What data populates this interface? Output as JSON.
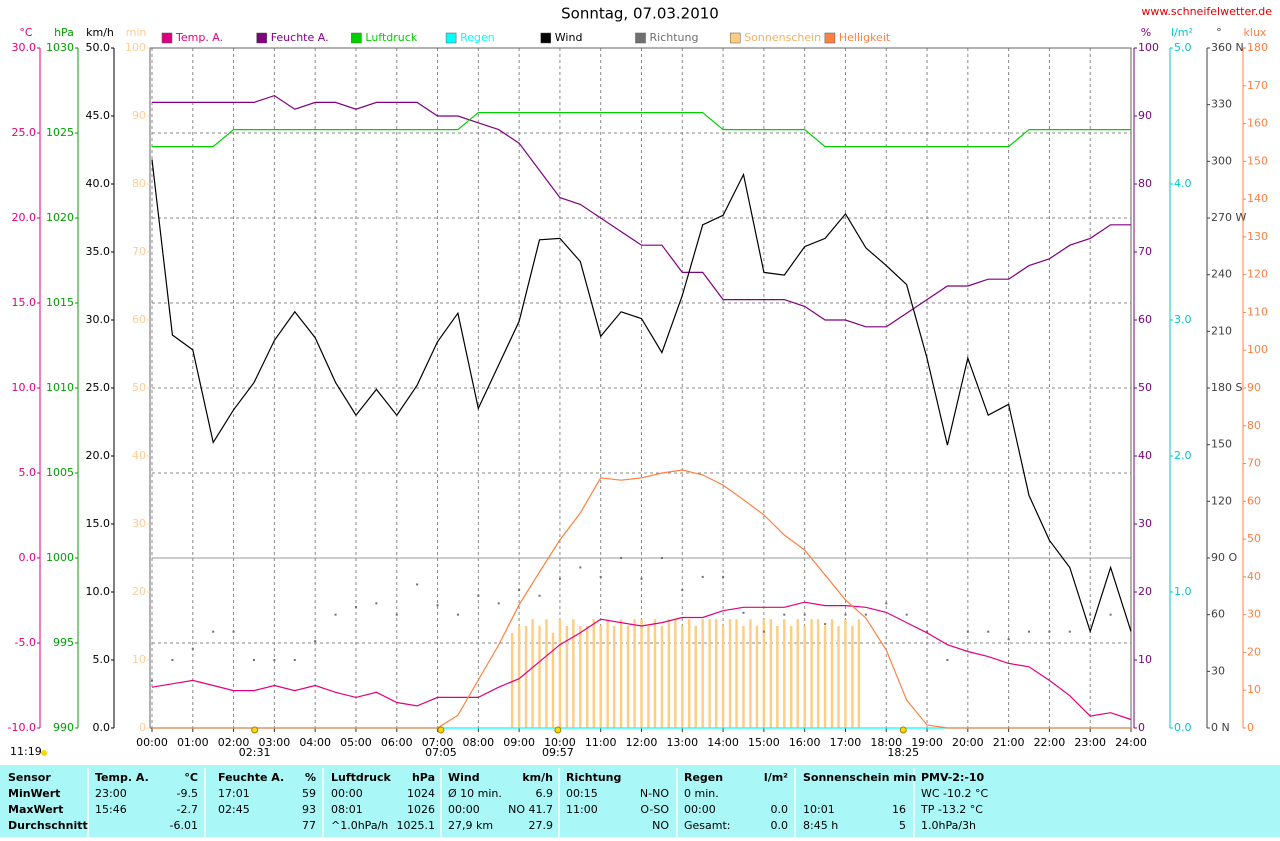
{
  "header": {
    "site": "www.schneifelwetter.de"
  },
  "chart_data": {
    "type": "line",
    "title": "Sonntag, 07.03.2010",
    "x": [
      0,
      0.5,
      1,
      1.5,
      2,
      2.5,
      3,
      3.5,
      4,
      4.5,
      5,
      5.5,
      6,
      6.5,
      7,
      7.5,
      8,
      8.5,
      9,
      9.5,
      10,
      10.5,
      11,
      11.5,
      12,
      12.5,
      13,
      13.5,
      14,
      14.5,
      15,
      15.5,
      16,
      16.5,
      17,
      17.5,
      18,
      18.5,
      19,
      19.5,
      20,
      20.5,
      21,
      21.5,
      22,
      22.5,
      23,
      23.5,
      24
    ],
    "xlim": [
      0,
      24
    ],
    "xticks": [
      {
        "value": 0,
        "label": "00:00"
      },
      {
        "value": 1,
        "label": "01:00"
      },
      {
        "value": 2,
        "label": "02:00"
      },
      {
        "value": 3,
        "label": "03:00"
      },
      {
        "value": 4,
        "label": "04:00"
      },
      {
        "value": 5,
        "label": "05:00"
      },
      {
        "value": 6,
        "label": "06:00"
      },
      {
        "value": 7,
        "label": "07:00"
      },
      {
        "value": 8,
        "label": "08:00"
      },
      {
        "value": 9,
        "label": "09:00"
      },
      {
        "value": 10,
        "label": "10:00"
      },
      {
        "value": 11,
        "label": "11:00"
      },
      {
        "value": 12,
        "label": "12:00"
      },
      {
        "value": 13,
        "label": "13:00"
      },
      {
        "value": 14,
        "label": "14:00"
      },
      {
        "value": 15,
        "label": "15:00"
      },
      {
        "value": 16,
        "label": "16:00"
      },
      {
        "value": 17,
        "label": "17:00"
      },
      {
        "value": 18,
        "label": "18:00"
      },
      {
        "value": 19,
        "label": "19:00"
      },
      {
        "value": 20,
        "label": "20:00"
      },
      {
        "value": 21,
        "label": "21:00"
      },
      {
        "value": 22,
        "label": "22:00"
      },
      {
        "value": 23,
        "label": "23:00"
      },
      {
        "value": 24,
        "label": "24:00"
      }
    ],
    "grid": true,
    "axes": [
      {
        "id": "temp",
        "unit": "°C",
        "side": "left",
        "color": "#e0007f",
        "lim": [
          -10,
          30
        ],
        "ticks": [
          {
            "value": -10,
            "label": "-10.0"
          },
          {
            "value": -5,
            "label": "-5.0"
          },
          {
            "value": 0,
            "label": "0.0"
          },
          {
            "value": 5,
            "label": "5.0"
          },
          {
            "value": 10,
            "label": "10.0"
          },
          {
            "value": 15,
            "label": "15.0"
          },
          {
            "value": 20,
            "label": "20.0"
          },
          {
            "value": 25,
            "label": "25.0"
          },
          {
            "value": 30,
            "label": "30.0"
          }
        ]
      },
      {
        "id": "press",
        "unit": "hPa",
        "side": "left",
        "color": "#00a000",
        "lim": [
          990,
          1030
        ],
        "ticks": [
          990,
          995,
          1000,
          1005,
          1010,
          1015,
          1020,
          1025,
          1030
        ]
      },
      {
        "id": "wind",
        "unit": "km/h",
        "side": "left",
        "color": "#000000",
        "lim": [
          0,
          50
        ],
        "ticks": [
          {
            "value": 0,
            "label": "0.0"
          },
          {
            "value": 5,
            "label": "5.0"
          },
          {
            "value": 10,
            "label": "10.0"
          },
          {
            "value": 15,
            "label": "15.0"
          },
          {
            "value": 20,
            "label": "20.0"
          },
          {
            "value": 25,
            "label": "25.0"
          },
          {
            "value": 30,
            "label": "30.0"
          },
          {
            "value": 35,
            "label": "35.0"
          },
          {
            "value": 40,
            "label": "40.0"
          },
          {
            "value": 45,
            "label": "45.0"
          },
          {
            "value": 50,
            "label": "50.0"
          }
        ]
      },
      {
        "id": "min",
        "unit": "min",
        "side": "left",
        "color": "#ffcc99",
        "lim": [
          0,
          100
        ],
        "ticks": [
          0,
          10,
          20,
          30,
          40,
          50,
          60,
          70,
          80,
          90,
          100
        ]
      },
      {
        "id": "hum",
        "unit": "%",
        "side": "right",
        "color": "#800080",
        "lim": [
          0,
          100
        ],
        "ticks": [
          0,
          10,
          20,
          30,
          40,
          50,
          60,
          70,
          80,
          90,
          100
        ]
      },
      {
        "id": "rain",
        "unit": "l/m²",
        "side": "right",
        "color": "#00c8c8",
        "lim": [
          0,
          5
        ],
        "ticks": [
          {
            "value": 0,
            "label": "0.0"
          },
          {
            "value": 1,
            "label": "1.0"
          },
          {
            "value": 2,
            "label": "2.0"
          },
          {
            "value": 3,
            "label": "3.0"
          },
          {
            "value": 4,
            "label": "4.0"
          },
          {
            "value": 5,
            "label": "5.0"
          }
        ]
      },
      {
        "id": "dir",
        "unit": "°",
        "side": "right",
        "color": "#404040",
        "lim": [
          0,
          360
        ],
        "ticks": [
          {
            "value": 0,
            "label": "0 N"
          },
          30,
          60,
          {
            "value": 90,
            "label": "90 O"
          },
          120,
          150,
          {
            "value": 180,
            "label": "180 S"
          },
          210,
          240,
          {
            "value": 270,
            "label": "270 W"
          },
          300,
          330,
          {
            "value": 360,
            "label": "360 N"
          }
        ]
      },
      {
        "id": "lux",
        "unit": "klux",
        "side": "right",
        "color": "#ff8040",
        "lim": [
          0,
          180
        ],
        "ticks": [
          0,
          10,
          20,
          30,
          40,
          50,
          60,
          70,
          80,
          90,
          100,
          110,
          120,
          130,
          140,
          150,
          160,
          170,
          180
        ]
      }
    ],
    "series": [
      {
        "name": "Temp. A.",
        "type": "line",
        "color": "#e0007f",
        "axis": "temp",
        "values": [
          -7.6,
          -7.4,
          -7.2,
          -7.5,
          -7.8,
          -7.8,
          -7.5,
          -7.8,
          -7.5,
          -7.9,
          -8.2,
          -7.9,
          -8.5,
          -8.7,
          -8.2,
          -8.2,
          -8.2,
          -7.6,
          -7.1,
          -6.1,
          -5.1,
          -4.4,
          -3.6,
          -3.8,
          -4.0,
          -3.8,
          -3.5,
          -3.5,
          -3.1,
          -2.9,
          -2.9,
          -2.9,
          -2.6,
          -2.8,
          -2.8,
          -2.9,
          -3.2,
          -3.8,
          -4.4,
          -5.1,
          -5.5,
          -5.8,
          -6.2,
          -6.4,
          -7.2,
          -8.1,
          -9.3,
          -9.1,
          -9.5
        ]
      },
      {
        "name": "Feuchte A.",
        "type": "line",
        "color": "#800080",
        "axis": "hum",
        "values": [
          92,
          92,
          92,
          92,
          92,
          92,
          93,
          91,
          92,
          92,
          91,
          92,
          92,
          92,
          90,
          90,
          89,
          88,
          86,
          82,
          78,
          77,
          75,
          73,
          71,
          71,
          67,
          67,
          63,
          63,
          63,
          63,
          62,
          60,
          60,
          59,
          59,
          61,
          63,
          65,
          65,
          66,
          66,
          68,
          69,
          71,
          72,
          74,
          74
        ]
      },
      {
        "name": "Luftdruck",
        "type": "line",
        "color": "#00d000",
        "axis": "press",
        "values": [
          1024.2,
          1024.2,
          1024.2,
          1024.2,
          1025.2,
          1025.2,
          1025.2,
          1025.2,
          1025.2,
          1025.2,
          1025.2,
          1025.2,
          1025.2,
          1025.2,
          1025.2,
          1025.2,
          1026.2,
          1026.2,
          1026.2,
          1026.2,
          1026.2,
          1026.2,
          1026.2,
          1026.2,
          1026.2,
          1026.2,
          1026.2,
          1026.2,
          1025.2,
          1025.2,
          1025.2,
          1025.2,
          1025.2,
          1024.2,
          1024.2,
          1024.2,
          1024.2,
          1024.2,
          1024.2,
          1024.2,
          1024.2,
          1024.2,
          1024.2,
          1025.2,
          1025.2,
          1025.2,
          1025.2,
          1025.2,
          1025.2
        ]
      },
      {
        "name": "Regen",
        "type": "line",
        "color": "#00ffff",
        "axis": "rain",
        "x": [
          0,
          24
        ],
        "values": [
          0,
          0
        ]
      },
      {
        "name": "Wind",
        "type": "line",
        "color": "#000000",
        "axis": "wind",
        "values": [
          41.8,
          28.9,
          27.8,
          21.0,
          23.4,
          25.4,
          28.5,
          30.6,
          28.7,
          25.4,
          23.0,
          24.9,
          23.0,
          25.2,
          28.4,
          30.5,
          23.5,
          26.7,
          29.9,
          35.9,
          36.0,
          34.3,
          28.8,
          30.6,
          30.1,
          27.6,
          31.8,
          37.0,
          37.7,
          40.7,
          33.5,
          33.3,
          35.4,
          36.0,
          37.8,
          35.3,
          34.0,
          32.6,
          27.2,
          20.8,
          27.2,
          23.0,
          23.8,
          17.1,
          13.8,
          11.8,
          7.1,
          11.8,
          7.1
        ]
      },
      {
        "name": "Richtung",
        "type": "scatter",
        "color": "#707070",
        "axis": "dir",
        "x": [
          0,
          0.5,
          1,
          1.5,
          2,
          2.5,
          3,
          3.5,
          4,
          4.5,
          5,
          5.5,
          6,
          6.5,
          7,
          7.5,
          8,
          8.5,
          9,
          9.5,
          10,
          10.5,
          11,
          11.5,
          12,
          12.5,
          13,
          13.5,
          14,
          14.5,
          15,
          15.5,
          16,
          16.5,
          17,
          17.5,
          18,
          18.5,
          19,
          19.5,
          20,
          20.5,
          21,
          21.5,
          22,
          22.5,
          23,
          23.5
        ],
        "values": [
          25,
          36,
          42,
          51,
          51,
          36,
          36,
          36,
          46,
          60,
          64,
          66,
          60,
          76,
          65,
          60,
          70,
          66,
          73,
          70,
          79,
          85,
          80,
          90,
          79,
          90,
          73,
          80,
          80,
          61,
          51,
          60,
          60,
          55,
          60,
          60,
          66,
          60,
          51,
          36,
          51,
          51,
          47,
          51,
          51,
          51,
          60,
          60
        ]
      },
      {
        "name": "Sonnenschein",
        "type": "bar",
        "color": "#ffcc80",
        "axis": "min",
        "x": [
          8.83,
          9,
          9.17,
          9.33,
          9.5,
          9.67,
          9.83,
          10,
          10.17,
          10.33,
          10.5,
          10.67,
          10.83,
          11,
          11.17,
          11.33,
          11.5,
          11.67,
          11.83,
          12,
          12.17,
          12.33,
          12.5,
          12.67,
          12.83,
          13,
          13.17,
          13.33,
          13.5,
          13.67,
          13.83,
          14,
          14.17,
          14.33,
          14.5,
          14.67,
          14.83,
          15,
          15.17,
          15.33,
          15.5,
          15.67,
          15.83,
          16,
          16.17,
          16.33,
          16.5,
          16.67,
          16.83,
          17,
          17.17,
          17.33
        ],
        "values": [
          14,
          15,
          15,
          16,
          15,
          16,
          14,
          16,
          15,
          16,
          15,
          15,
          16,
          15,
          16,
          15,
          16,
          15,
          16,
          16,
          15,
          16,
          15,
          16,
          16,
          15,
          16,
          15,
          16,
          16,
          16,
          15,
          16,
          16,
          15,
          16,
          15,
          16,
          16,
          15,
          16,
          15,
          16,
          15,
          16,
          16,
          15,
          16,
          15,
          16,
          15,
          16
        ]
      },
      {
        "name": "Helligkeit",
        "type": "line",
        "color": "#ff8040",
        "axis": "lux",
        "values": [
          0,
          0,
          0,
          0,
          0,
          0,
          0,
          0,
          0,
          0,
          0,
          0,
          0,
          0,
          0,
          3.4,
          12.7,
          22,
          32.6,
          41.3,
          49.8,
          56.9,
          66.2,
          65.6,
          66.2,
          67.5,
          68.3,
          67,
          64.3,
          60.4,
          56.4,
          51.1,
          47.1,
          40.5,
          33.9,
          29.1,
          20.6,
          7.4,
          0.8,
          0,
          0,
          0,
          0,
          0,
          0,
          0,
          0,
          0,
          0
        ]
      }
    ],
    "events": [
      "02:31",
      "07:05",
      "09:57",
      "18:25"
    ],
    "left_time": "11:19"
  },
  "table": {
    "rows": [
      [
        "Sensor",
        "Temp. A.",
        "°C",
        "Feuchte A.",
        "%",
        "Luftdruck",
        "hPa",
        "Wind",
        "km/h",
        "Richtung",
        null,
        "Regen",
        "l/m²",
        "Sonnenschein min",
        null,
        "PMV-2:-10"
      ],
      [
        "MinWert",
        "23:00",
        "-9.5",
        "17:01",
        "59",
        "00:00",
        "1024",
        "Ø 10 min.",
        "6.9",
        "00:15",
        "N-NO",
        "0 min.",
        null,
        null,
        null,
        "WC -10.2 °C"
      ],
      [
        "MaxWert",
        "15:46",
        "-2.7",
        "02:45",
        "93",
        "08:01",
        "1026",
        "00:00",
        "NO 41.7",
        "11:00",
        "O-SO",
        "00:00",
        "0.0",
        "10:01",
        "16",
        "TP -13.2 °C"
      ],
      [
        "Durchschnitt",
        null,
        "-6.01",
        null,
        "77",
        "^1.0hPa/h",
        "1025.1",
        "27,9 km",
        "27.9",
        null,
        "NO",
        "Gesamt:",
        "0.0",
        "8:45 h",
        "5",
        "1.0hPa/3h"
      ]
    ]
  }
}
